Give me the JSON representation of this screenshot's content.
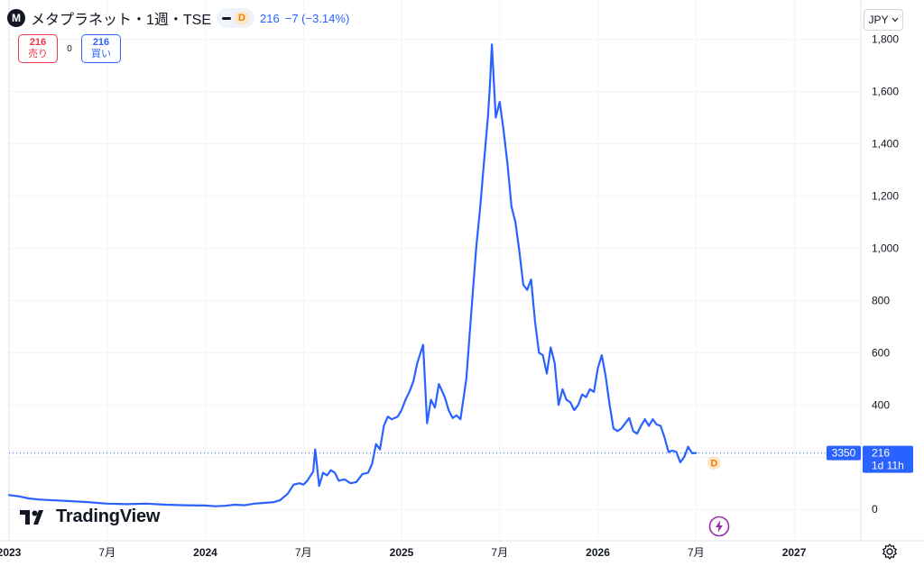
{
  "header": {
    "logo_letter": "M",
    "title": "メタプラネット・1週・TSE",
    "badge_letter": "D",
    "price": "216",
    "change": "−7 (−3.14%)"
  },
  "trade": {
    "sell_price": "216",
    "sell_label": "売り",
    "spread": "0",
    "buy_price": "216",
    "buy_label": "買い"
  },
  "currency_button": "JPY",
  "watermark": "TradingView",
  "price_tag": {
    "left_label": "3350",
    "price": "216",
    "countdown": "1d 11h"
  },
  "dividend_marker": "D",
  "colors": {
    "line": "#2962ff",
    "grid": "#f0f3fa",
    "text": "#131722",
    "sell": "#f23645",
    "buy": "#2962ff",
    "marker": "#f57c00",
    "bolt": "#9c27b0"
  },
  "icons": [
    "gear-icon",
    "lightning-icon",
    "tradingview-logo-icon"
  ],
  "chart_data": {
    "type": "line",
    "title": "",
    "xlabel": "",
    "ylabel": "",
    "ylim": [
      -120,
      1950
    ],
    "xlim": [
      2023.0,
      2027.34
    ],
    "y_ticks": [
      {
        "value": 0,
        "label": "0"
      },
      {
        "value": 200,
        "label": ""
      },
      {
        "value": 400,
        "label": "400"
      },
      {
        "value": 600,
        "label": "600"
      },
      {
        "value": 800,
        "label": "800"
      },
      {
        "value": 1000,
        "label": "1,000"
      },
      {
        "value": 1200,
        "label": "1,200"
      },
      {
        "value": 1400,
        "label": "1,400"
      },
      {
        "value": 1600,
        "label": "1,600"
      },
      {
        "value": 1800,
        "label": "1,800"
      }
    ],
    "x_ticks": [
      {
        "value": 2023.0,
        "label": "2023",
        "bold": true
      },
      {
        "value": 2023.5,
        "label": "7月",
        "bold": false
      },
      {
        "value": 2024.0,
        "label": "2024",
        "bold": true
      },
      {
        "value": 2024.5,
        "label": "7月",
        "bold": false
      },
      {
        "value": 2025.0,
        "label": "2025",
        "bold": true
      },
      {
        "value": 2025.5,
        "label": "7月",
        "bold": false
      },
      {
        "value": 2026.0,
        "label": "2026",
        "bold": true
      },
      {
        "value": 2026.5,
        "label": "7月",
        "bold": false
      },
      {
        "value": 2027.0,
        "label": "2027",
        "bold": true
      }
    ],
    "last_price": 216,
    "series": [
      {
        "values": [
          [
            2023.0,
            55
          ],
          [
            2023.05,
            50
          ],
          [
            2023.1,
            42
          ],
          [
            2023.15,
            38
          ],
          [
            2023.2,
            36
          ],
          [
            2023.3,
            32
          ],
          [
            2023.4,
            28
          ],
          [
            2023.5,
            22
          ],
          [
            2023.6,
            20
          ],
          [
            2023.7,
            22
          ],
          [
            2023.8,
            18
          ],
          [
            2023.9,
            16
          ],
          [
            2024.0,
            15
          ],
          [
            2024.05,
            12
          ],
          [
            2024.1,
            14
          ],
          [
            2024.15,
            18
          ],
          [
            2024.2,
            16
          ],
          [
            2024.25,
            22
          ],
          [
            2024.3,
            25
          ],
          [
            2024.35,
            28
          ],
          [
            2024.38,
            35
          ],
          [
            2024.42,
            60
          ],
          [
            2024.45,
            95
          ],
          [
            2024.48,
            100
          ],
          [
            2024.5,
            95
          ],
          [
            2024.52,
            110
          ],
          [
            2024.55,
            145
          ],
          [
            2024.56,
            230
          ],
          [
            2024.58,
            90
          ],
          [
            2024.6,
            140
          ],
          [
            2024.62,
            130
          ],
          [
            2024.64,
            150
          ],
          [
            2024.66,
            140
          ],
          [
            2024.68,
            110
          ],
          [
            2024.71,
            115
          ],
          [
            2024.74,
            100
          ],
          [
            2024.77,
            105
          ],
          [
            2024.8,
            135
          ],
          [
            2024.83,
            140
          ],
          [
            2024.85,
            175
          ],
          [
            2024.87,
            250
          ],
          [
            2024.89,
            230
          ],
          [
            2024.91,
            320
          ],
          [
            2024.93,
            355
          ],
          [
            2024.95,
            345
          ],
          [
            2024.98,
            355
          ],
          [
            2025.0,
            380
          ],
          [
            2025.02,
            420
          ],
          [
            2025.04,
            450
          ],
          [
            2025.06,
            490
          ],
          [
            2025.08,
            560
          ],
          [
            2025.11,
            630
          ],
          [
            2025.13,
            330
          ],
          [
            2025.15,
            420
          ],
          [
            2025.17,
            390
          ],
          [
            2025.19,
            480
          ],
          [
            2025.22,
            430
          ],
          [
            2025.24,
            380
          ],
          [
            2025.26,
            350
          ],
          [
            2025.28,
            360
          ],
          [
            2025.3,
            345
          ],
          [
            2025.33,
            500
          ],
          [
            2025.36,
            800
          ],
          [
            2025.38,
            1000
          ],
          [
            2025.4,
            1150
          ],
          [
            2025.42,
            1330
          ],
          [
            2025.44,
            1500
          ],
          [
            2025.45,
            1620
          ],
          [
            2025.46,
            1780
          ],
          [
            2025.48,
            1500
          ],
          [
            2025.5,
            1560
          ],
          [
            2025.52,
            1450
          ],
          [
            2025.54,
            1320
          ],
          [
            2025.56,
            1160
          ],
          [
            2025.58,
            1100
          ],
          [
            2025.6,
            990
          ],
          [
            2025.62,
            860
          ],
          [
            2025.64,
            840
          ],
          [
            2025.66,
            880
          ],
          [
            2025.68,
            720
          ],
          [
            2025.7,
            600
          ],
          [
            2025.72,
            590
          ],
          [
            2025.74,
            520
          ],
          [
            2025.76,
            620
          ],
          [
            2025.78,
            560
          ],
          [
            2025.8,
            400
          ],
          [
            2025.82,
            460
          ],
          [
            2025.84,
            420
          ],
          [
            2025.86,
            410
          ],
          [
            2025.88,
            380
          ],
          [
            2025.9,
            400
          ],
          [
            2025.92,
            440
          ],
          [
            2025.94,
            430
          ],
          [
            2025.96,
            460
          ],
          [
            2025.98,
            450
          ],
          [
            2026.0,
            540
          ],
          [
            2026.02,
            590
          ],
          [
            2026.04,
            510
          ],
          [
            2026.06,
            400
          ],
          [
            2026.08,
            310
          ],
          [
            2026.1,
            300
          ],
          [
            2026.12,
            310
          ],
          [
            2026.14,
            330
          ],
          [
            2026.16,
            350
          ],
          [
            2026.18,
            300
          ],
          [
            2026.2,
            290
          ],
          [
            2026.22,
            320
          ],
          [
            2026.24,
            345
          ],
          [
            2026.26,
            320
          ],
          [
            2026.28,
            345
          ],
          [
            2026.3,
            325
          ],
          [
            2026.32,
            320
          ],
          [
            2026.34,
            275
          ],
          [
            2026.36,
            220
          ],
          [
            2026.38,
            225
          ],
          [
            2026.4,
            220
          ],
          [
            2026.42,
            180
          ],
          [
            2026.44,
            200
          ],
          [
            2026.46,
            240
          ],
          [
            2026.48,
            215
          ],
          [
            2026.5,
            216
          ]
        ]
      }
    ]
  }
}
